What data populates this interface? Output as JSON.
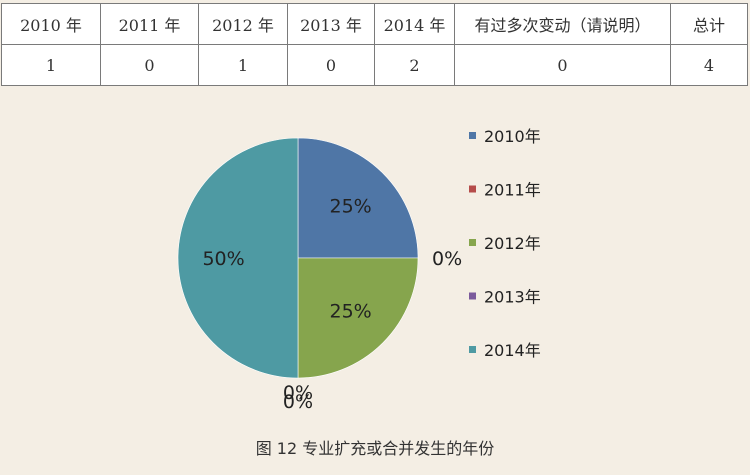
{
  "table": {
    "headers": [
      "2010 年",
      "2011 年",
      "2012 年",
      "2013 年",
      "2014 年",
      "有过多次变动（请说明）",
      "总计"
    ],
    "values": [
      "1",
      "0",
      "1",
      "0",
      "2",
      "0",
      "4"
    ]
  },
  "chart_data": {
    "type": "pie",
    "categories": [
      "2010年",
      "2011年",
      "2012年",
      "2013年",
      "2014年"
    ],
    "values": [
      1,
      0,
      1,
      0,
      2
    ],
    "labels": [
      "25%",
      "0%",
      "25%",
      "0%",
      "50%"
    ],
    "extra_labels": [
      "0%"
    ],
    "colors": [
      "#4f76a6",
      "#b54c4a",
      "#86a54d",
      "#7b5a9c",
      "#4e9aa3"
    ],
    "legend_position": "right"
  },
  "caption": "图 12  专业扩充或合并发生的年份"
}
